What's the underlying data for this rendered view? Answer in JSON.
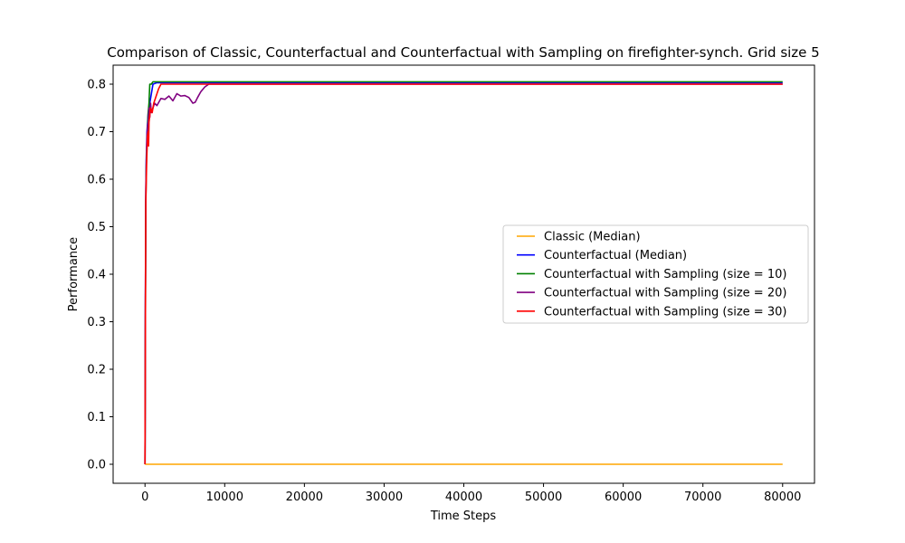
{
  "chart_data": {
    "type": "line",
    "title": "Comparison of Classic, Counterfactual and Counterfactual with Sampling on firefighter-synch. Grid size 5",
    "xlabel": "Time Steps",
    "ylabel": "Performance",
    "xlim": [
      -4000,
      84000
    ],
    "ylim": [
      -0.04,
      0.84
    ],
    "xticks": [
      0,
      10000,
      20000,
      30000,
      40000,
      50000,
      60000,
      70000,
      80000
    ],
    "yticks": [
      0.0,
      0.1,
      0.2,
      0.3,
      0.4,
      0.5,
      0.6,
      0.7,
      0.8
    ],
    "ytick_labels": [
      "0.0",
      "0.1",
      "0.2",
      "0.3",
      "0.4",
      "0.5",
      "0.6",
      "0.7",
      "0.8"
    ],
    "grid": false,
    "legend_position": "center-right",
    "series": [
      {
        "name": "Classic (Median)",
        "color": "#ffa500",
        "points": [
          [
            0,
            0.0
          ],
          [
            80000,
            0.0
          ]
        ]
      },
      {
        "name": "Counterfactual (Median)",
        "color": "#0000ff",
        "points": [
          [
            0,
            0.0
          ],
          [
            50,
            0.35
          ],
          [
            100,
            0.55
          ],
          [
            150,
            0.64
          ],
          [
            250,
            0.7
          ],
          [
            400,
            0.74
          ],
          [
            600,
            0.76
          ],
          [
            800,
            0.78
          ],
          [
            1000,
            0.8
          ],
          [
            1500,
            0.803
          ],
          [
            3000,
            0.803
          ],
          [
            80000,
            0.803
          ]
        ]
      },
      {
        "name": "Counterfactual with Sampling (size = 10)",
        "color": "#008000",
        "points": [
          [
            0,
            0.0
          ],
          [
            50,
            0.3
          ],
          [
            100,
            0.55
          ],
          [
            150,
            0.62
          ],
          [
            300,
            0.7
          ],
          [
            400,
            0.74
          ],
          [
            500,
            0.76
          ],
          [
            600,
            0.8
          ],
          [
            800,
            0.8
          ],
          [
            1000,
            0.805
          ],
          [
            2000,
            0.805
          ],
          [
            80000,
            0.805
          ]
        ]
      },
      {
        "name": "Counterfactual with Sampling (size = 20)",
        "color": "#800080",
        "points": [
          [
            0,
            0.0
          ],
          [
            50,
            0.35
          ],
          [
            100,
            0.58
          ],
          [
            200,
            0.66
          ],
          [
            300,
            0.71
          ],
          [
            400,
            0.72
          ],
          [
            500,
            0.75
          ],
          [
            600,
            0.73
          ],
          [
            700,
            0.76
          ],
          [
            800,
            0.74
          ],
          [
            1000,
            0.75
          ],
          [
            1200,
            0.76
          ],
          [
            1500,
            0.755
          ],
          [
            2000,
            0.77
          ],
          [
            2500,
            0.768
          ],
          [
            3000,
            0.775
          ],
          [
            3500,
            0.765
          ],
          [
            4000,
            0.78
          ],
          [
            4500,
            0.775
          ],
          [
            5000,
            0.776
          ],
          [
            5500,
            0.772
          ],
          [
            6000,
            0.76
          ],
          [
            6300,
            0.762
          ],
          [
            6600,
            0.772
          ],
          [
            7000,
            0.784
          ],
          [
            7500,
            0.794
          ],
          [
            8000,
            0.8
          ],
          [
            9000,
            0.8
          ],
          [
            80000,
            0.8
          ]
        ]
      },
      {
        "name": "Counterfactual with Sampling (size = 30)",
        "color": "#ff0000",
        "points": [
          [
            0,
            0.0
          ],
          [
            50,
            0.3
          ],
          [
            100,
            0.55
          ],
          [
            200,
            0.63
          ],
          [
            300,
            0.69
          ],
          [
            400,
            0.7
          ],
          [
            450,
            0.67
          ],
          [
            500,
            0.72
          ],
          [
            700,
            0.75
          ],
          [
            900,
            0.74
          ],
          [
            1100,
            0.76
          ],
          [
            1300,
            0.77
          ],
          [
            1500,
            0.78
          ],
          [
            1700,
            0.79
          ],
          [
            2000,
            0.8
          ],
          [
            3000,
            0.8
          ],
          [
            80000,
            0.8
          ]
        ]
      }
    ]
  }
}
